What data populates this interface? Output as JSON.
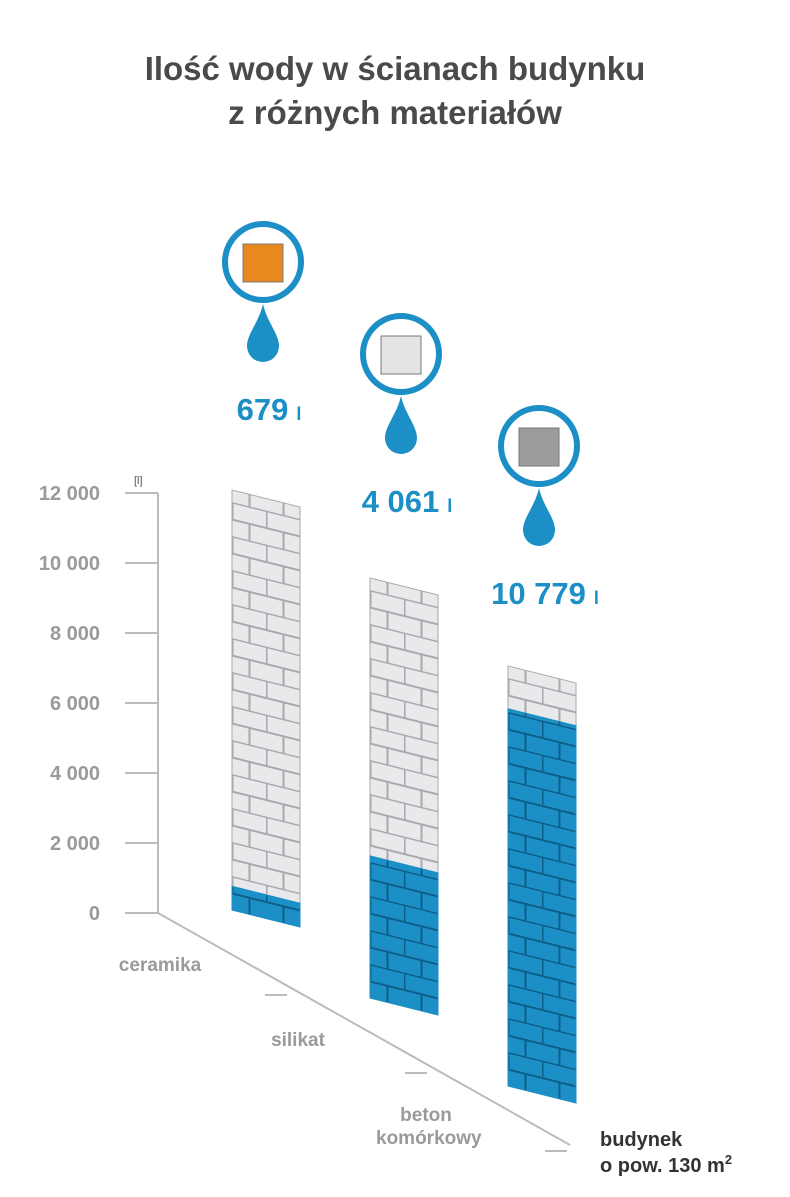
{
  "chart_data": {
    "type": "bar",
    "title": [
      "Ilość wody w ścianach budynku",
      "z różnych materiałów"
    ],
    "y_unit": "[l]",
    "value_unit": "l",
    "categories": [
      "ceramika",
      "silikat",
      "beton komórkowy"
    ],
    "values": [
      679,
      4061,
      10779
    ],
    "value_labels": [
      "679",
      "4 061",
      "10 779"
    ],
    "color": "#1b8fc6",
    "ylim": [
      0,
      12000
    ],
    "yticks": [
      0,
      {
        "value": 2000,
        "label": "2 000"
      },
      {
        "value": 4000,
        "label": "4 000"
      },
      {
        "value": 6000,
        "label": "6 000"
      },
      {
        "value": 8000,
        "label": "8 000"
      },
      {
        "value": 10000,
        "label": "10 000"
      },
      {
        "value": 12000,
        "label": "12 000"
      }
    ],
    "xlabel": [
      "budynek",
      "o pow. 130 m"
    ],
    "xlabel_sup": "2"
  }
}
